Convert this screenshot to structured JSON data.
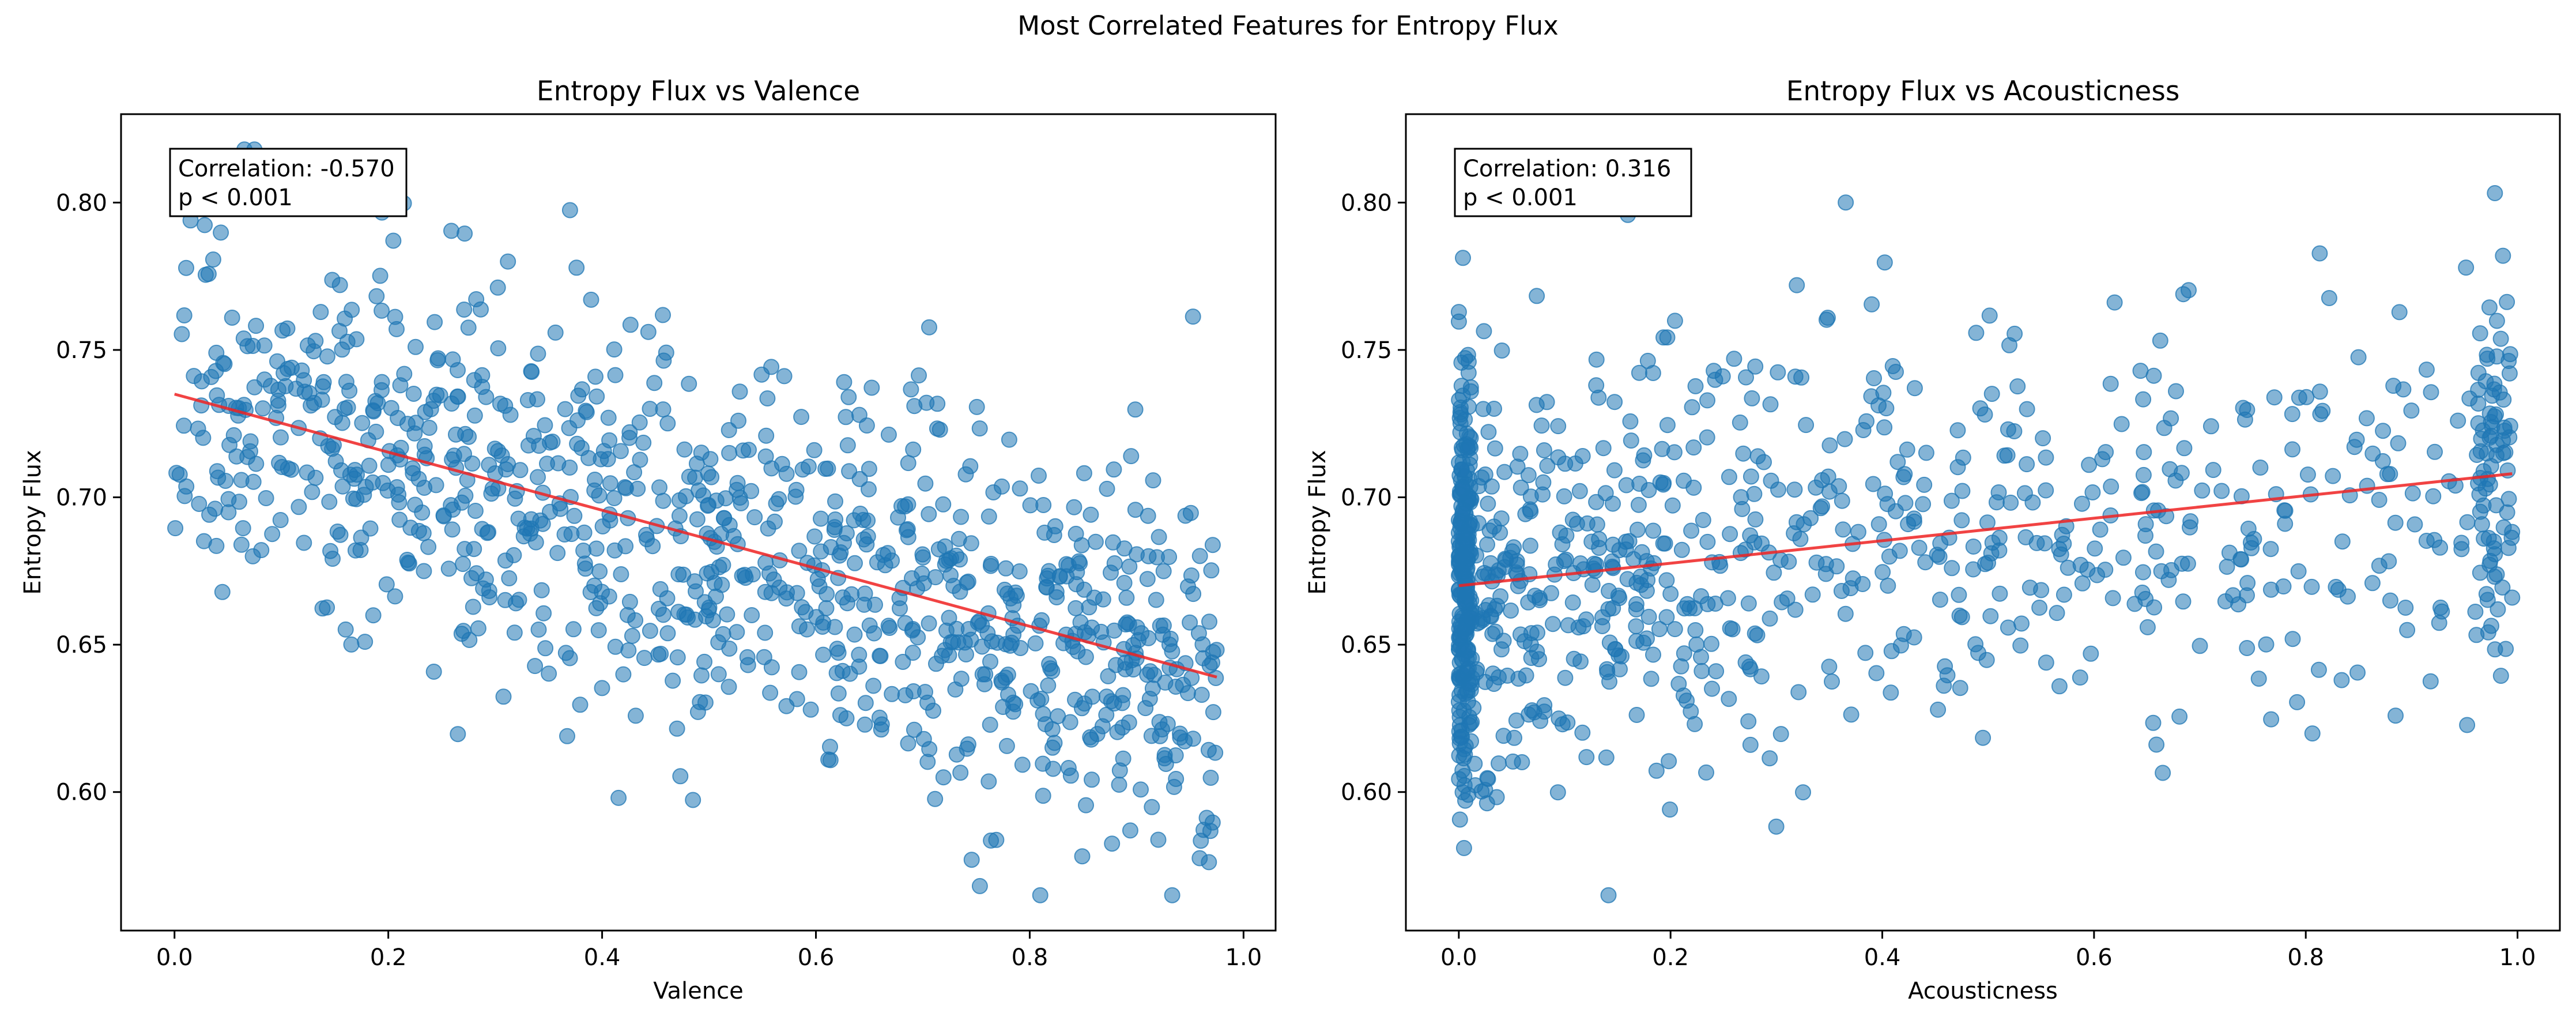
{
  "figure": {
    "title": "Most Correlated Features for Entropy Flux"
  },
  "colors": {
    "points": "#1f77b4",
    "trend": "#ee2222",
    "axes": "#000000"
  },
  "chart_data": [
    {
      "type": "scatter",
      "title": "Entropy Flux vs Valence",
      "xlabel": "Valence",
      "ylabel": "Entropy Flux",
      "xlim": [
        -0.05,
        1.03
      ],
      "ylim": [
        0.553,
        0.83
      ],
      "xticks": [
        0.0,
        0.2,
        0.4,
        0.6,
        0.8,
        1.0
      ],
      "xtick_labels": [
        "0.0",
        "0.2",
        "0.4",
        "0.6",
        "0.8",
        "1.0"
      ],
      "yticks": [
        0.6,
        0.65,
        0.7,
        0.75,
        0.8
      ],
      "ytick_labels": [
        "0.60",
        "0.65",
        "0.70",
        "0.75",
        "0.80"
      ],
      "annotation": [
        "Correlation: -0.570",
        "p < 0.001"
      ],
      "trendline": {
        "x": [
          0.0,
          0.975
        ],
        "y": [
          0.735,
          0.639
        ]
      },
      "grid": false,
      "n_points": 1000
    },
    {
      "type": "scatter",
      "title": "Entropy Flux vs Acousticness",
      "xlabel": "Acousticness",
      "ylabel": "Entropy Flux",
      "xlim": [
        -0.05,
        1.04
      ],
      "ylim": [
        0.553,
        0.83
      ],
      "xticks": [
        0.0,
        0.2,
        0.4,
        0.6,
        0.8,
        1.0
      ],
      "xtick_labels": [
        "0.0",
        "0.2",
        "0.4",
        "0.6",
        "0.8",
        "1.0"
      ],
      "yticks": [
        0.6,
        0.65,
        0.7,
        0.75,
        0.8
      ],
      "ytick_labels": [
        "0.60",
        "0.65",
        "0.70",
        "0.75",
        "0.80"
      ],
      "annotation": [
        "Correlation: 0.316",
        "p < 0.001"
      ],
      "trendline": {
        "x": [
          0.0,
          0.995
        ],
        "y": [
          0.67,
          0.708
        ]
      },
      "grid": false,
      "n_points": 1000
    }
  ]
}
